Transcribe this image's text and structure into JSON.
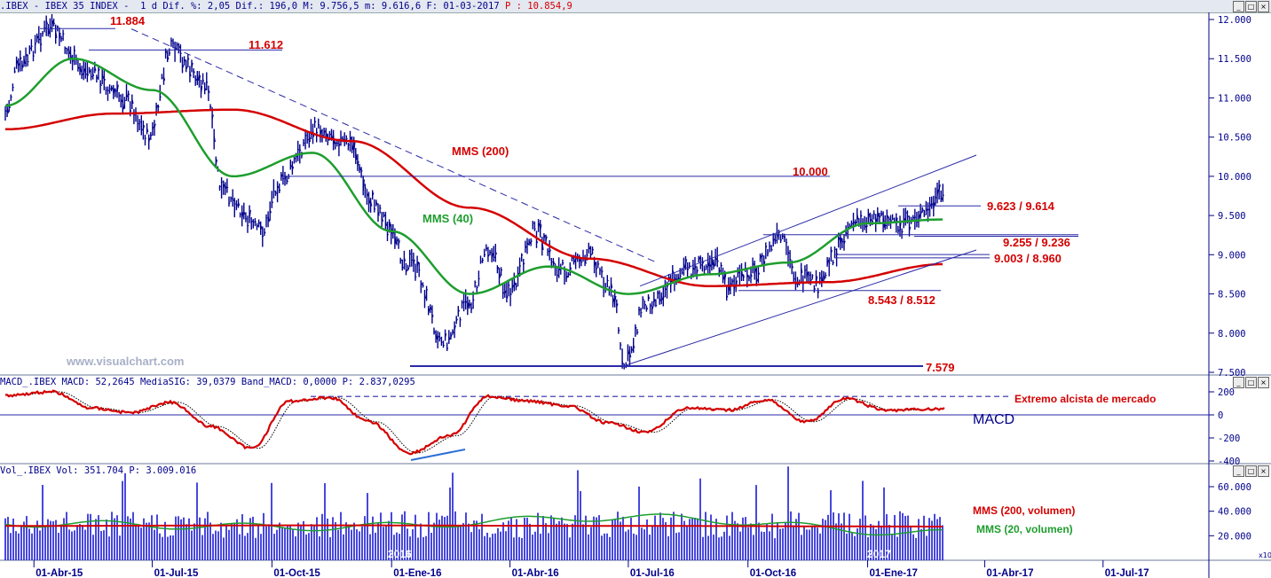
{
  "price_header": {
    "symbol": ".IBEX - IBEX 35 INDEX -",
    "period": "1 d",
    "stats": "Dif. %: 2,05 Dif.: 196,0 M: 9.756,5 m: 9.616,6 F: 01-03-2017",
    "p_value": "P : 10.854,9"
  },
  "macd_header": {
    "text": "MACD_.IBEX MACD: 52,2645 MediaSIG: 39,0379 Band_MACD: 0,0000 P: 2.837,0295"
  },
  "vol_header": {
    "text": "Vol_.IBEX Vol: 351.704 P: 3.009.016"
  },
  "watermark": "www.visualchart.com",
  "colors": {
    "price": "#00008b",
    "mms200": "#d40000",
    "mms40": "#1e9e2e",
    "trend": "#2a2aa8",
    "label_red": "#d40000",
    "label_green": "#1e9e2e"
  },
  "annotations": {
    "mms200": "MMS (200)",
    "mms40": "MMS (40)",
    "l11884": "11.884",
    "l11612": "11.612",
    "l10000": "10.000",
    "l9623": "9.623 / 9.614",
    "l9255": "9.255 / 9.236",
    "l9003": "9.003 / 8.960",
    "l8543": "8.543 / 8.512",
    "l7579": "7.579",
    "extremo": "Extremo alcista de mercado",
    "macd": "MACD",
    "vol200": "MMS (200, volumen)",
    "vol20": "MMS (20, volumen)",
    "year2016": "2016",
    "year2017": "2017",
    "x10": "x10"
  },
  "chart_data": [
    {
      "type": "line",
      "title": "IBEX 35 INDEX",
      "series": [
        {
          "name": "MMS (200)",
          "x": [
            "2015-03-10",
            "2015-06-01",
            "2015-09-01",
            "2015-12-01",
            "2016-03-01",
            "2016-06-01",
            "2016-09-01",
            "2016-12-01",
            "2017-03-01"
          ],
          "values": [
            10600,
            10800,
            10850,
            10450,
            9600,
            8950,
            8600,
            8650,
            8880
          ]
        },
        {
          "name": "MMS (40)",
          "x": [
            "2015-03-10",
            "2015-05-01",
            "2015-07-01",
            "2015-09-01",
            "2015-11-01",
            "2016-01-01",
            "2016-03-01",
            "2016-05-01",
            "2016-07-01",
            "2016-09-01",
            "2016-11-01",
            "2017-01-01",
            "2017-03-01"
          ],
          "values": [
            10900,
            11500,
            11100,
            10000,
            10300,
            9300,
            8500,
            8850,
            8500,
            8750,
            8900,
            9400,
            9450
          ]
        }
      ],
      "key_levels": [
        11884,
        11612,
        10000,
        9623,
        9614,
        9255,
        9236,
        9003,
        8960,
        8543,
        8512,
        7579
      ],
      "ylim": [
        7500,
        12000
      ],
      "yticks": [
        "12.000",
        "11.500",
        "11.000",
        "10.500",
        "10.000",
        "9.500",
        "9.000",
        "8.500",
        "8.000",
        "7.500"
      ],
      "xticks": [
        "01-Abr-15",
        "01-Jul-15",
        "01-Oct-15",
        "01-Ene-16",
        "01-Abr-16",
        "01-Jul-16",
        "01-Oct-16",
        "01-Ene-17",
        "01-Abr-17",
        "01-Jul-17"
      ],
      "grid": false
    },
    {
      "type": "line",
      "title": "MACD",
      "series": [
        {
          "name": "MACD",
          "x": [
            "2015-03",
            "2015-04",
            "2015-05",
            "2015-06",
            "2015-07",
            "2015-08",
            "2015-09",
            "2015-10",
            "2015-11",
            "2015-12",
            "2016-01",
            "2016-02",
            "2016-03",
            "2016-04",
            "2016-05",
            "2016-06",
            "2016-07",
            "2016-08",
            "2016-09",
            "2016-10",
            "2016-11",
            "2016-12",
            "2017-01",
            "2017-02"
          ],
          "values": [
            170,
            200,
            60,
            20,
            110,
            -100,
            -290,
            120,
            150,
            -60,
            -330,
            -180,
            160,
            120,
            80,
            -70,
            -150,
            60,
            40,
            130,
            -60,
            140,
            40,
            52
          ]
        }
      ],
      "ylim": [
        -400,
        200
      ],
      "yticks": [
        "200",
        "0",
        "-200",
        "-400"
      ]
    },
    {
      "type": "bar",
      "title": "Volumen",
      "series": [
        {
          "name": "MMS (200, volumen)",
          "values": [
            28000,
            28500,
            28000,
            27500
          ]
        },
        {
          "name": "MMS (20, volumen)",
          "values": [
            30000,
            27000,
            35000,
            22000
          ]
        }
      ],
      "yticks": [
        "60.000",
        "40.000",
        "20.000"
      ]
    }
  ]
}
